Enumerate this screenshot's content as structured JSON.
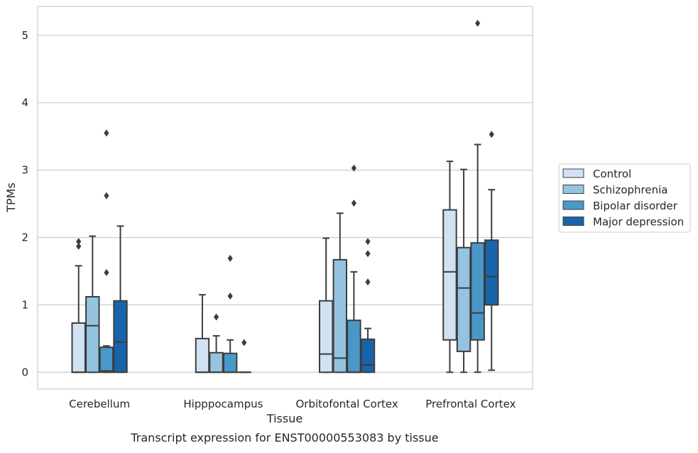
{
  "caption": "Transcript expression for ENST00000553083 by tissue",
  "chart_data": {
    "type": "box",
    "xlabel": "Tissue",
    "ylabel": "TPMs",
    "ylim": [
      -0.25,
      5.43
    ],
    "yticks": [
      0,
      1,
      2,
      3,
      4,
      5
    ],
    "grid": "horizontal",
    "legend_position": "right",
    "categories": [
      "Cerebellum",
      "Hipppocampus",
      "Orbitofontal Cortex",
      "Prefrontal Cortex"
    ],
    "series": [
      {
        "name": "Control",
        "color": "#d0e1f2",
        "boxes": [
          {
            "whisker_low": 0,
            "q1": 0,
            "median": 0,
            "q3": 0.73,
            "whisker_high": 1.58,
            "outliers": [
              1.87,
              1.94
            ]
          },
          {
            "whisker_low": 0,
            "q1": 0,
            "median": 0,
            "q3": 0.5,
            "whisker_high": 1.15,
            "outliers": []
          },
          {
            "whisker_low": 0,
            "q1": 0,
            "median": 0.27,
            "q3": 1.06,
            "whisker_high": 1.99,
            "outliers": []
          },
          {
            "whisker_low": 0,
            "q1": 0.48,
            "median": 1.49,
            "q3": 2.41,
            "whisker_high": 3.13,
            "outliers": []
          }
        ]
      },
      {
        "name": "Schizophrenia",
        "color": "#94c4df",
        "boxes": [
          {
            "whisker_low": 0,
            "q1": 0,
            "median": 0.69,
            "q3": 1.12,
            "whisker_high": 2.02,
            "outliers": []
          },
          {
            "whisker_low": 0,
            "q1": 0,
            "median": 0,
            "q3": 0.29,
            "whisker_high": 0.54,
            "outliers": [
              0.82
            ]
          },
          {
            "whisker_low": 0,
            "q1": 0,
            "median": 0.21,
            "q3": 1.67,
            "whisker_high": 2.36,
            "outliers": []
          },
          {
            "whisker_low": 0,
            "q1": 0.31,
            "median": 1.25,
            "q3": 1.85,
            "whisker_high": 3.01,
            "outliers": []
          }
        ]
      },
      {
        "name": "Bipolar disorder",
        "color": "#4a98c9",
        "boxes": [
          {
            "whisker_low": 0,
            "q1": 0,
            "median": 0.02,
            "q3": 0.37,
            "whisker_high": 0.39,
            "outliers": [
              1.48,
              2.62,
              3.55
            ]
          },
          {
            "whisker_low": 0,
            "q1": 0,
            "median": 0,
            "q3": 0.28,
            "whisker_high": 0.48,
            "outliers": [
              1.13,
              1.69
            ]
          },
          {
            "whisker_low": 0,
            "q1": 0,
            "median": 0,
            "q3": 0.77,
            "whisker_high": 1.49,
            "outliers": [
              2.51,
              3.03
            ]
          },
          {
            "whisker_low": 0,
            "q1": 0.48,
            "median": 0.88,
            "q3": 1.92,
            "whisker_high": 3.38,
            "outliers": [
              5.18
            ]
          }
        ]
      },
      {
        "name": "Major depression",
        "color": "#1764ab",
        "boxes": [
          {
            "whisker_low": 0,
            "q1": 0,
            "median": 0.45,
            "q3": 1.06,
            "whisker_high": 2.17,
            "outliers": []
          },
          {
            "whisker_low": 0,
            "q1": 0,
            "median": 0,
            "q3": 0,
            "whisker_high": 0,
            "outliers": [
              0.44
            ]
          },
          {
            "whisker_low": 0,
            "q1": 0,
            "median": 0.11,
            "q3": 0.49,
            "whisker_high": 0.65,
            "outliers": [
              1.34,
              1.76,
              1.94
            ]
          },
          {
            "whisker_low": 0.03,
            "q1": 1.0,
            "median": 1.42,
            "q3": 1.96,
            "whisker_high": 2.71,
            "outliers": [
              3.53
            ]
          }
        ]
      }
    ]
  }
}
